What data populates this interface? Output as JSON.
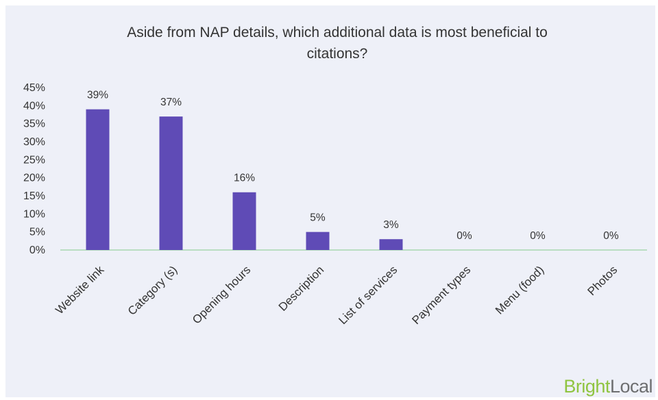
{
  "chart_data": {
    "type": "bar",
    "title_lines": [
      "Aside from NAP details, which additional data is most beneficial to",
      "citations?"
    ],
    "categories": [
      "Website link",
      "Category (s)",
      "Opening hours",
      "Description",
      "List of services",
      "Payment types",
      "Menu (food)",
      "Photos"
    ],
    "values": [
      39,
      37,
      16,
      5,
      3,
      0,
      0,
      0
    ],
    "data_labels": [
      "39%",
      "37%",
      "16%",
      "5%",
      "3%",
      "0%",
      "0%",
      "0%"
    ],
    "y_ticks": [
      "0%",
      "5%",
      "10%",
      "15%",
      "20%",
      "25%",
      "30%",
      "35%",
      "40%",
      "45%"
    ],
    "ylim": [
      0,
      45
    ],
    "xlabel": "",
    "ylabel": "",
    "grid": false,
    "legend": "none",
    "bar_color": "#5f4bb6",
    "axis_color": "#a8d8b0"
  },
  "branding": {
    "logo_part1": "Bright",
    "logo_part2": "Local",
    "logo_color_1": "#8fc440",
    "logo_color_2": "#6d6e70"
  }
}
